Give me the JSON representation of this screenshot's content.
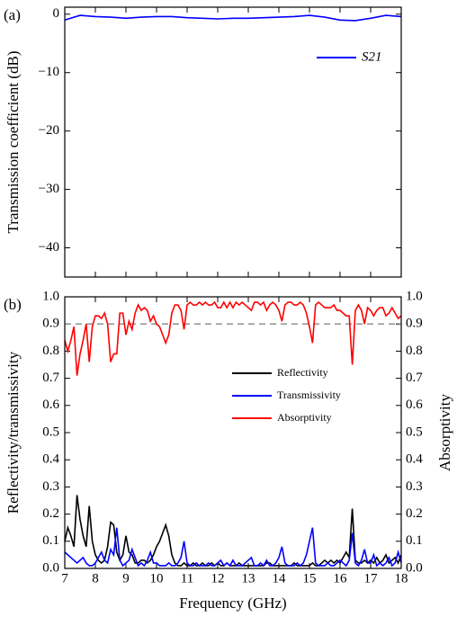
{
  "chart_data": [
    {
      "type": "line",
      "panel_label": "(a)",
      "ylabel": "Transmission coefficient (dB)",
      "x": [
        7,
        7.5,
        8,
        8.5,
        9,
        9.5,
        10,
        10.5,
        11,
        11.5,
        12,
        12.5,
        13,
        13.5,
        14,
        14.5,
        15,
        15.5,
        16,
        16.5,
        17,
        17.5,
        18
      ],
      "series": [
        {
          "name": "S21",
          "color": "#0000ff",
          "values": [
            -1.0,
            -0.2,
            -0.4,
            -0.5,
            -0.7,
            -0.5,
            -0.4,
            -0.4,
            -0.6,
            -0.7,
            -0.8,
            -0.7,
            -0.7,
            -0.6,
            -0.5,
            -0.4,
            -0.2,
            -0.5,
            -1.0,
            -1.1,
            -0.7,
            -0.2,
            -0.4
          ]
        }
      ],
      "xlim": [
        7,
        18
      ],
      "xticks": [
        7,
        8,
        9,
        10,
        11,
        12,
        13,
        14,
        15,
        16,
        17,
        18
      ],
      "ylim": [
        -45,
        1.2
      ],
      "yticks": [
        0,
        {
          "value": -10,
          "label": "−10"
        },
        {
          "value": -20,
          "label": "−20"
        },
        {
          "value": -30,
          "label": "−30"
        },
        {
          "value": -40,
          "label": "−40"
        }
      ],
      "legend": "upper right"
    },
    {
      "type": "line",
      "panel_label": "(b)",
      "xlabel": "Frequency (GHz)",
      "ylabel": "Reflectivity/transmissivity",
      "y2label": "Absorptivity",
      "x": [
        7,
        7.1,
        7.2,
        7.3,
        7.4,
        7.5,
        7.6,
        7.7,
        7.8,
        7.9,
        8,
        8.1,
        8.2,
        8.3,
        8.4,
        8.5,
        8.6,
        8.7,
        8.8,
        8.9,
        9,
        9.1,
        9.2,
        9.3,
        9.4,
        9.5,
        9.6,
        9.7,
        9.8,
        9.9,
        10,
        10.1,
        10.2,
        10.3,
        10.4,
        10.5,
        10.6,
        10.7,
        10.8,
        10.9,
        11,
        11.1,
        11.2,
        11.3,
        11.4,
        11.5,
        11.6,
        11.7,
        11.8,
        11.9,
        12,
        12.1,
        12.2,
        12.3,
        12.4,
        12.5,
        12.6,
        12.7,
        12.8,
        12.9,
        13,
        13.1,
        13.2,
        13.3,
        13.4,
        13.5,
        13.6,
        13.7,
        13.8,
        13.9,
        14,
        14.1,
        14.2,
        14.3,
        14.4,
        14.5,
        14.6,
        14.7,
        14.8,
        14.9,
        15,
        15.1,
        15.2,
        15.3,
        15.4,
        15.5,
        15.6,
        15.7,
        15.8,
        15.9,
        16,
        16.1,
        16.2,
        16.3,
        16.4,
        16.5,
        16.6,
        16.7,
        16.8,
        16.9,
        17,
        17.1,
        17.2,
        17.3,
        17.4,
        17.5,
        17.6,
        17.7,
        17.8,
        17.9,
        18
      ],
      "series": [
        {
          "name": "Reflectivity",
          "color": "#000000",
          "values": [
            0.1,
            0.15,
            0.12,
            0.08,
            0.27,
            0.18,
            0.12,
            0.08,
            0.23,
            0.1,
            0.05,
            0.03,
            0.02,
            0.03,
            0.08,
            0.17,
            0.16,
            0.06,
            0.03,
            0.05,
            0.12,
            0.06,
            0.05,
            0.02,
            0.02,
            0.03,
            0.03,
            0.02,
            0.03,
            0.05,
            0.08,
            0.1,
            0.13,
            0.16,
            0.12,
            0.05,
            0.02,
            0.01,
            0.01,
            0.02,
            0.01,
            0.01,
            0.02,
            0.01,
            0.01,
            0.02,
            0.01,
            0.01,
            0.02,
            0.01,
            0.02,
            0.01,
            0.01,
            0.02,
            0.01,
            0.01,
            0.01,
            0.02,
            0.01,
            0.01,
            0.01,
            0.01,
            0.01,
            0.01,
            0.01,
            0.01,
            0.02,
            0.02,
            0.01,
            0.01,
            0.01,
            0.01,
            0.01,
            0.01,
            0.01,
            0.02,
            0.01,
            0.01,
            0.01,
            0.01,
            0.01,
            0.02,
            0.01,
            0.01,
            0.02,
            0.03,
            0.02,
            0.03,
            0.02,
            0.03,
            0.02,
            0.04,
            0.06,
            0.04,
            0.22,
            0.03,
            0.02,
            0.02,
            0.03,
            0.02,
            0.03,
            0.02,
            0.04,
            0.02,
            0.03,
            0.05,
            0.02,
            0.03,
            0.04,
            0.02,
            0.05
          ]
        },
        {
          "name": "Transmissivity",
          "color": "#0000ff",
          "values": [
            0.06,
            0.05,
            0.04,
            0.03,
            0.02,
            0.03,
            0.04,
            0.02,
            0.01,
            0.01,
            0.02,
            0.04,
            0.06,
            0.03,
            0.02,
            0.07,
            0.05,
            0.15,
            0.03,
            0.01,
            0.02,
            0.03,
            0.07,
            0.04,
            0.01,
            0.02,
            0.01,
            0.03,
            0.06,
            0.02,
            0.02,
            0.01,
            0.01,
            0.01,
            0.02,
            0.01,
            0.01,
            0.02,
            0.04,
            0.1,
            0.02,
            0.01,
            0.01,
            0.02,
            0.01,
            0.01,
            0.01,
            0.02,
            0.01,
            0.01,
            0.02,
            0.03,
            0.01,
            0.02,
            0.01,
            0.03,
            0.01,
            0.01,
            0.01,
            0.02,
            0.03,
            0.04,
            0.01,
            0.01,
            0.02,
            0.01,
            0.03,
            0.01,
            0.01,
            0.02,
            0.04,
            0.08,
            0.02,
            0.01,
            0.01,
            0.01,
            0.02,
            0.01,
            0.02,
            0.05,
            0.1,
            0.15,
            0.02,
            0.01,
            0.01,
            0.01,
            0.02,
            0.01,
            0.01,
            0.02,
            0.03,
            0.02,
            0.01,
            0.03,
            0.13,
            0.02,
            0.01,
            0.03,
            0.07,
            0.02,
            0.02,
            0.05,
            0.01,
            0.02,
            0.01,
            0.02,
            0.04,
            0.01,
            0.02,
            0.06,
            0.02
          ]
        },
        {
          "name": "Absorptivity",
          "color": "#ff0000",
          "axis": "y2",
          "values": [
            0.84,
            0.8,
            0.84,
            0.89,
            0.71,
            0.79,
            0.84,
            0.9,
            0.76,
            0.89,
            0.93,
            0.93,
            0.92,
            0.94,
            0.9,
            0.76,
            0.79,
            0.79,
            0.94,
            0.94,
            0.86,
            0.91,
            0.88,
            0.94,
            0.97,
            0.95,
            0.96,
            0.95,
            0.91,
            0.93,
            0.9,
            0.89,
            0.86,
            0.83,
            0.86,
            0.94,
            0.97,
            0.97,
            0.95,
            0.88,
            0.97,
            0.98,
            0.97,
            0.97,
            0.98,
            0.97,
            0.98,
            0.97,
            0.97,
            0.98,
            0.96,
            0.96,
            0.98,
            0.96,
            0.98,
            0.96,
            0.98,
            0.97,
            0.98,
            0.97,
            0.96,
            0.95,
            0.98,
            0.98,
            0.97,
            0.98,
            0.95,
            0.97,
            0.98,
            0.97,
            0.95,
            0.91,
            0.97,
            0.98,
            0.98,
            0.97,
            0.97,
            0.98,
            0.97,
            0.94,
            0.89,
            0.83,
            0.97,
            0.98,
            0.97,
            0.96,
            0.96,
            0.96,
            0.97,
            0.95,
            0.95,
            0.94,
            0.93,
            0.93,
            0.75,
            0.95,
            0.97,
            0.95,
            0.9,
            0.96,
            0.95,
            0.93,
            0.95,
            0.96,
            0.96,
            0.93,
            0.94,
            0.96,
            0.94,
            0.92,
            0.93
          ]
        }
      ],
      "xlim": [
        7,
        18
      ],
      "xticks": [
        7,
        8,
        9,
        10,
        11,
        12,
        13,
        14,
        15,
        16,
        17,
        18
      ],
      "ylim": [
        0,
        1
      ],
      "yticks": [
        {
          "value": 0,
          "label": "0.0"
        },
        {
          "value": 0.1,
          "label": "0.1"
        },
        {
          "value": 0.2,
          "label": "0.2"
        },
        {
          "value": 0.3,
          "label": "0.3"
        },
        {
          "value": 0.4,
          "label": "0.4"
        },
        {
          "value": 0.5,
          "label": "0.5"
        },
        {
          "value": 0.6,
          "label": "0.6"
        },
        {
          "value": 0.7,
          "label": "0.7"
        },
        {
          "value": 0.8,
          "label": "0.8"
        },
        {
          "value": 0.9,
          "label": "0.9"
        },
        {
          "value": 1,
          "label": "1.0"
        }
      ],
      "y2lim": [
        0,
        1
      ],
      "y2ticks": [
        {
          "value": 0,
          "label": "0.0"
        },
        {
          "value": 0.1,
          "label": "0.1"
        },
        {
          "value": 0.2,
          "label": "0.2"
        },
        {
          "value": 0.3,
          "label": "0.3"
        },
        {
          "value": 0.4,
          "label": "0.4"
        },
        {
          "value": 0.5,
          "label": "0.5"
        },
        {
          "value": 0.6,
          "label": "0.6"
        },
        {
          "value": 0.7,
          "label": "0.7"
        },
        {
          "value": 0.8,
          "label": "0.8"
        },
        {
          "value": 0.9,
          "label": "0.9"
        },
        {
          "value": 1,
          "label": "1.0"
        }
      ],
      "reference_line": 0.9,
      "legend": "center"
    }
  ]
}
